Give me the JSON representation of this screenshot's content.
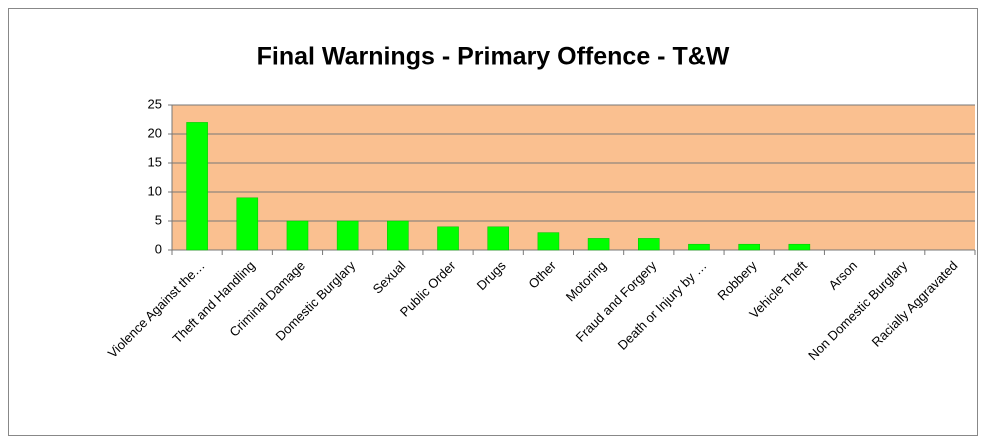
{
  "chart_data": {
    "type": "bar",
    "title": "Final Warnings - Primary Offence - T&W",
    "categories": [
      "Violence Against the…",
      "Theft and Handling",
      "Criminal Damage",
      "Domestic Burglary",
      "Sexual",
      "Public Order",
      "Drugs",
      "Other",
      "Motoring",
      "Fraud and Forgery",
      "Death or Injury by …",
      "Robbery",
      "Vehicle Theft",
      "Arson",
      "Non Domestic Burglary",
      "Racially Aggravated"
    ],
    "values": [
      22,
      9,
      5,
      5,
      5,
      4,
      4,
      3,
      2,
      2,
      1,
      1,
      1,
      0,
      0,
      0
    ],
    "color": "#00ff00",
    "plot_background": "#fac090",
    "ylim": [
      0,
      25
    ],
    "yticks": [
      0,
      5,
      10,
      15,
      20,
      25
    ],
    "grid": true
  }
}
